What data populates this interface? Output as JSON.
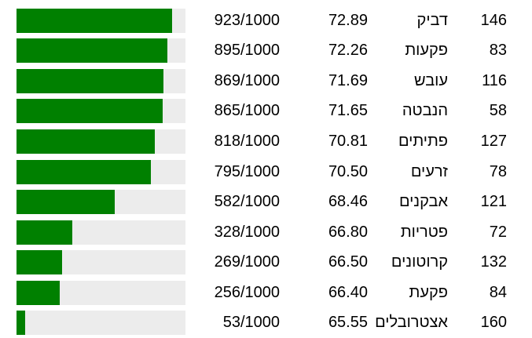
{
  "colors": {
    "bar_fill": "#008000",
    "bar_track": "#ececec",
    "text": "#000000",
    "background": "#ffffff"
  },
  "bar_max": 1000,
  "rows": [
    {
      "rank": 923,
      "fraction": "923/1000",
      "score": "72.89",
      "word": "דביק",
      "count": "146"
    },
    {
      "rank": 895,
      "fraction": "895/1000",
      "score": "72.26",
      "word": "פקעות",
      "count": "83"
    },
    {
      "rank": 869,
      "fraction": "869/1000",
      "score": "71.69",
      "word": "עובש",
      "count": "116"
    },
    {
      "rank": 865,
      "fraction": "865/1000",
      "score": "71.65",
      "word": "הנבטה",
      "count": "58"
    },
    {
      "rank": 818,
      "fraction": "818/1000",
      "score": "70.81",
      "word": "פתיתים",
      "count": "127"
    },
    {
      "rank": 795,
      "fraction": "795/1000",
      "score": "70.50",
      "word": "זרעים",
      "count": "78"
    },
    {
      "rank": 582,
      "fraction": "582/1000",
      "score": "68.46",
      "word": "אבקנים",
      "count": "121"
    },
    {
      "rank": 328,
      "fraction": "328/1000",
      "score": "66.80",
      "word": "פטריות",
      "count": "72"
    },
    {
      "rank": 269,
      "fraction": "269/1000",
      "score": "66.50",
      "word": "קרוטונים",
      "count": "132"
    },
    {
      "rank": 256,
      "fraction": "256/1000",
      "score": "66.40",
      "word": "פקעת",
      "count": "84"
    },
    {
      "rank": 53,
      "fraction": "53/1000",
      "score": "65.55",
      "word": "אצטרובלים",
      "count": "160"
    }
  ],
  "chart_data": {
    "type": "bar",
    "orientation": "horizontal",
    "title": "",
    "xlabel": "",
    "ylabel": "",
    "xlim": [
      0,
      1000
    ],
    "grid": false,
    "legend_position": "none",
    "bar_color": "#008000",
    "track_color": "#ececec",
    "categories": [
      "דביק",
      "פקעות",
      "עובש",
      "הנבטה",
      "פתיתים",
      "זרעים",
      "אבקנים",
      "פטריות",
      "קרוטונים",
      "פקעת",
      "אצטרובלים"
    ],
    "series": [
      {
        "name": "rank_of_1000",
        "values": [
          923,
          895,
          869,
          865,
          818,
          795,
          582,
          328,
          269,
          256,
          53
        ]
      },
      {
        "name": "similarity",
        "values": [
          72.89,
          72.26,
          71.69,
          71.65,
          70.81,
          70.5,
          68.46,
          66.8,
          66.5,
          66.4,
          65.55
        ]
      },
      {
        "name": "guess_number",
        "values": [
          146,
          83,
          116,
          58,
          127,
          78,
          121,
          72,
          132,
          84,
          160
        ]
      }
    ]
  }
}
